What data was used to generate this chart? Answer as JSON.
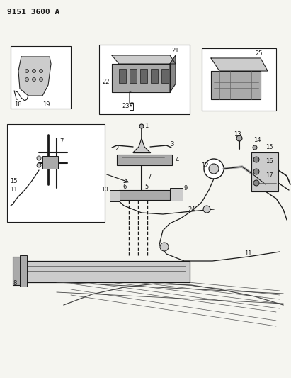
{
  "title": "9151 3600 A",
  "bg_color": "#f5f5f0",
  "line_color": "#1a1a1a",
  "fig_width": 4.11,
  "fig_height": 5.33,
  "dpi": 100,
  "title_fontsize": 8,
  "label_fontsize": 6.5
}
